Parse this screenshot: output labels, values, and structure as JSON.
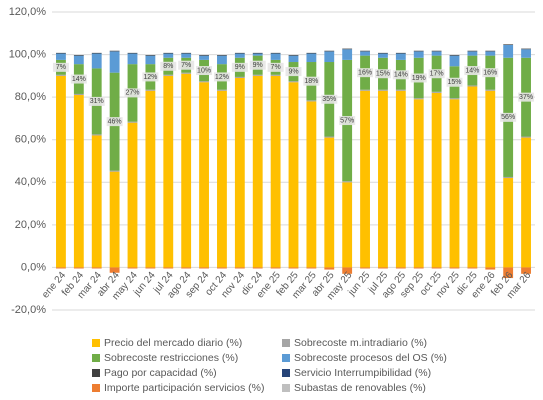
{
  "chart_data": {
    "type": "stacked-bar",
    "categories": [
      "ene 24",
      "feb 24",
      "mar 24",
      "abr 24",
      "may 24",
      "jun 24",
      "jul 24",
      "ago 24",
      "sep 24",
      "oct 24",
      "nov 24",
      "dic 24",
      "ene 25",
      "feb 25",
      "mar 25",
      "abr 25",
      "may 25",
      "jun 25",
      "jul 25",
      "ago 25",
      "sep 25",
      "oct 25",
      "nov 25",
      "dic 25",
      "ene 26",
      "feb 26",
      "mar 26"
    ],
    "series": [
      {
        "name": "Precio del mercado diario (%)",
        "color": "#ffc000",
        "values": [
          90,
          81,
          62,
          45,
          68,
          83,
          90,
          91,
          87,
          83,
          89,
          90,
          90,
          87,
          78,
          61,
          40,
          83,
          83,
          83,
          79,
          82,
          79,
          85,
          83,
          42,
          61
        ]
      },
      {
        "name": "Sobrecoste m.intradiario (%)",
        "color": "#a5a5a5",
        "values": [
          0.5,
          0.5,
          0.5,
          0.5,
          0.5,
          0.5,
          0.5,
          0.5,
          0.5,
          0.5,
          0.5,
          0.5,
          0.5,
          0.5,
          0.5,
          0.5,
          0.5,
          0.5,
          0.5,
          0.5,
          0.5,
          0.5,
          0.5,
          0.5,
          0.5,
          0.5,
          0.5
        ]
      },
      {
        "name": "Sobrecoste restricciones (%)",
        "color": "#70ad47",
        "values": [
          7,
          14,
          31,
          46,
          27,
          12,
          8,
          7,
          10,
          12,
          9,
          9,
          7,
          9,
          18,
          35,
          57,
          16,
          15,
          14,
          19,
          17,
          15,
          14,
          16,
          56,
          37
        ],
        "value_labels": [
          "7%",
          "14%",
          "31%",
          "46%",
          "27%",
          "12%",
          "8%",
          "7%",
          "10%",
          "12%",
          "9%",
          "9%",
          "7%",
          "9%",
          "18%",
          "35%",
          "57%",
          "16%",
          "15%",
          "14%",
          "19%",
          "17%",
          "15%",
          "14%",
          "16%",
          "56%",
          "37%"
        ]
      },
      {
        "name": "Sobrecoste procesos del OS (%)",
        "color": "#5b9bd5",
        "values": [
          3,
          4,
          7,
          10,
          5,
          4,
          2,
          2,
          2,
          4,
          2,
          1,
          3,
          3,
          4,
          5,
          5,
          2,
          2,
          3,
          3,
          2,
          5,
          2,
          2,
          6,
          4
        ]
      },
      {
        "name": "Pago por capacidad (%)",
        "color": "#404040",
        "values": [
          0.3,
          0.3,
          0.3,
          0.3,
          0.3,
          0.3,
          0.3,
          0.3,
          0.3,
          0.3,
          0.3,
          0.3,
          0.3,
          0.3,
          0.3,
          0.3,
          0.3,
          0.3,
          0.3,
          0.3,
          0.3,
          0.3,
          0.3,
          0.3,
          0.3,
          0.3,
          0.3
        ]
      },
      {
        "name": "Servicio Interrumpibilidad (%)",
        "color": "#264478",
        "values": [
          0,
          0,
          0,
          0,
          0,
          0,
          0,
          0,
          0,
          0,
          0,
          0,
          0,
          0,
          0,
          0,
          0,
          0,
          0,
          0,
          0,
          0,
          0,
          0,
          0,
          0,
          0
        ]
      },
      {
        "name": "Importe participación servicios (%)",
        "color": "#ed7d31",
        "values": [
          -0.5,
          -0.5,
          -0.5,
          -2.5,
          -0.5,
          -0.5,
          -0.5,
          -0.5,
          -0.5,
          -0.5,
          -0.5,
          -0.5,
          -0.5,
          -0.5,
          -0.5,
          -1,
          -3,
          -0.5,
          -0.5,
          -0.5,
          -0.5,
          -0.5,
          -0.5,
          -0.5,
          -1,
          -5,
          -3
        ]
      },
      {
        "name": "Subastas de renovables (%)",
        "color": "#bfbfbf",
        "values": [
          0,
          0,
          0,
          0,
          0,
          0,
          0,
          0,
          0,
          0,
          0,
          0,
          0,
          0,
          0,
          0,
          0,
          0,
          0,
          0,
          0,
          0,
          0,
          0,
          0,
          0,
          0
        ]
      }
    ],
    "ylim": [
      -20,
      120
    ],
    "yticks": [
      {
        "value": -20,
        "label": "-20,0%"
      },
      {
        "value": 0,
        "label": "0,0%"
      },
      {
        "value": 20,
        "label": "20,0%"
      },
      {
        "value": 40,
        "label": "40,0%"
      },
      {
        "value": 60,
        "label": "60,0%"
      },
      {
        "value": 80,
        "label": "80,0%"
      },
      {
        "value": 100,
        "label": "100,0%"
      },
      {
        "value": 120,
        "label": "120,0%"
      }
    ],
    "grid": true
  }
}
